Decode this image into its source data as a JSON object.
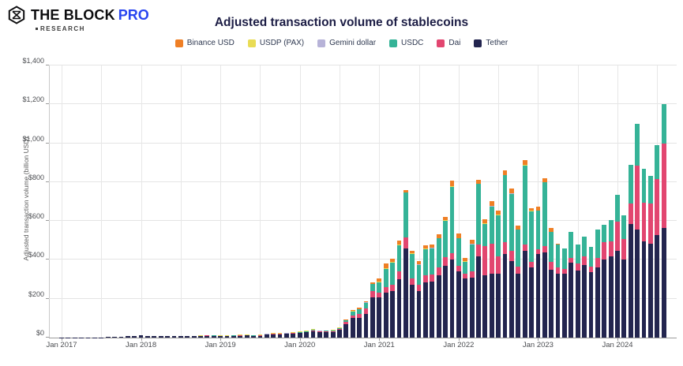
{
  "header": {
    "brand": "THE BLOCK",
    "brand_pro": "PRO",
    "brand_sub": "RESEARCH",
    "pro_color": "#2945f0"
  },
  "legend": [
    {
      "label": "Binance USD",
      "color": "#ef7f25"
    },
    {
      "label": "USDP (PAX)",
      "color": "#e9dc55"
    },
    {
      "label": "Gemini dollar",
      "color": "#b7b3d8"
    },
    {
      "label": "USDC",
      "color": "#35b397"
    },
    {
      "label": "Dai",
      "color": "#e24670"
    },
    {
      "label": "Tether",
      "color": "#23254f"
    }
  ],
  "chart_data": {
    "type": "bar",
    "subtype": "stacked-monthly",
    "title": "Adjusted transaction volume of stablecoins",
    "ylabel": "Adjusted transaction volume (billion USD)",
    "unit": "billion USD",
    "ylim": [
      0,
      1400
    ],
    "y_ticks": [
      "$0",
      "$200",
      "$400",
      "$600",
      "$800",
      "$1,000",
      "$1,200",
      "$1,400"
    ],
    "x_tick_labels": [
      "Jan 2017",
      "Jan 2018",
      "Jan 2019",
      "Jan 2020",
      "Jan 2021",
      "Jan 2022",
      "Jan 2023",
      "Jan 2024"
    ],
    "start_month": "Jan 2017",
    "end_month": "Aug 2024",
    "grid": "horizontal every $200, vertical every 6 months",
    "legend_position": "top-center",
    "series": [
      {
        "name": "Tether",
        "color": "#23254f",
        "values": [
          1,
          1,
          1,
          1,
          2,
          2,
          2,
          3,
          4,
          5,
          7,
          10,
          11,
          7,
          8,
          7,
          8,
          7,
          8,
          9,
          9,
          8,
          10,
          9,
          7,
          8,
          9,
          10,
          11,
          9,
          10,
          15,
          17,
          17,
          19,
          21,
          24,
          27,
          33,
          28,
          29,
          30,
          40,
          70,
          100,
          100,
          120,
          205,
          205,
          233,
          240,
          300,
          460,
          270,
          240,
          285,
          290,
          320,
          370,
          400,
          340,
          305,
          310,
          420,
          320,
          330,
          330,
          430,
          395,
          330,
          445,
          360,
          430,
          440,
          350,
          330,
          330,
          385,
          345,
          375,
          335,
          360,
          400,
          420,
          447,
          402,
          583,
          555,
          495,
          483,
          527,
          563
        ]
      },
      {
        "name": "Dai",
        "color": "#e24670",
        "values": [
          0,
          0,
          0,
          0,
          0,
          0,
          0,
          0,
          0,
          0,
          0,
          0,
          0,
          0,
          0,
          0,
          0,
          0,
          0,
          0,
          1,
          1,
          1,
          1,
          1,
          1,
          1,
          1,
          1,
          1,
          1,
          2,
          2,
          2,
          2,
          2,
          2,
          3,
          4,
          3,
          3,
          4,
          5,
          10,
          15,
          20,
          30,
          35,
          25,
          28,
          30,
          40,
          55,
          35,
          30,
          35,
          35,
          40,
          45,
          35,
          30,
          25,
          30,
          60,
          150,
          155,
          90,
          60,
          50,
          35,
          35,
          30,
          25,
          30,
          40,
          30,
          25,
          25,
          35,
          45,
          30,
          50,
          90,
          75,
          148,
          105,
          105,
          330,
          200,
          205,
          290,
          434
        ]
      },
      {
        "name": "USDC",
        "color": "#35b397",
        "values": [
          0,
          0,
          0,
          0,
          0,
          0,
          0,
          0,
          0,
          0,
          0,
          0,
          0,
          0,
          0,
          0,
          0,
          0,
          0,
          0,
          0,
          0,
          1,
          1,
          0,
          0,
          1,
          1,
          1,
          1,
          1,
          1,
          1,
          1,
          1,
          2,
          2,
          2,
          3,
          3,
          3,
          3,
          4,
          8,
          20,
          25,
          30,
          35,
          55,
          93,
          115,
          135,
          230,
          125,
          105,
          135,
          135,
          150,
          185,
          340,
          140,
          60,
          140,
          310,
          115,
          190,
          210,
          345,
          295,
          190,
          405,
          260,
          200,
          330,
          155,
          120,
          105,
          135,
          100,
          100,
          100,
          145,
          90,
          110,
          140,
          123,
          202,
          215,
          175,
          142,
          173,
          203
        ]
      },
      {
        "name": "Gemini dollar",
        "color": "#b7b3d8",
        "values": [
          0,
          0,
          0,
          0,
          0,
          0,
          0,
          0,
          0,
          0,
          0,
          0,
          0,
          0,
          0,
          0,
          0,
          0,
          0,
          0,
          0,
          1,
          1,
          1,
          1,
          1,
          1,
          1,
          1,
          1,
          1,
          1,
          1,
          1,
          1,
          1,
          1,
          1,
          1,
          1,
          1,
          1,
          1,
          1,
          1,
          1,
          1,
          1,
          1,
          1,
          1,
          1,
          1,
          1,
          1,
          1,
          1,
          1,
          1,
          1,
          1,
          1,
          1,
          1,
          1,
          1,
          1,
          1,
          1,
          1,
          1,
          1,
          0,
          0,
          0,
          0,
          0,
          0,
          0,
          0,
          0,
          0,
          0,
          0,
          0,
          0,
          0,
          0,
          0,
          0,
          0,
          0
        ]
      },
      {
        "name": "USDP (PAX)",
        "color": "#e9dc55",
        "values": [
          0,
          0,
          0,
          0,
          0,
          0,
          0,
          0,
          0,
          0,
          0,
          0,
          0,
          0,
          0,
          0,
          0,
          0,
          0,
          0,
          0,
          1,
          1,
          1,
          2,
          2,
          2,
          2,
          2,
          2,
          2,
          2,
          2,
          2,
          2,
          2,
          2,
          2,
          2,
          2,
          2,
          2,
          2,
          2,
          2,
          2,
          2,
          2,
          2,
          2,
          2,
          2,
          2,
          2,
          2,
          2,
          2,
          2,
          2,
          2,
          1,
          1,
          1,
          1,
          1,
          1,
          1,
          1,
          1,
          1,
          1,
          1,
          0,
          0,
          0,
          0,
          0,
          0,
          0,
          0,
          0,
          0,
          0,
          0,
          0,
          0,
          0,
          0,
          0,
          0,
          0,
          0
        ]
      },
      {
        "name": "Binance USD",
        "color": "#ef7f25",
        "values": [
          0,
          0,
          0,
          0,
          0,
          0,
          0,
          0,
          0,
          0,
          0,
          0,
          0,
          0,
          0,
          0,
          0,
          0,
          0,
          0,
          0,
          0,
          0,
          0,
          0,
          0,
          0,
          0,
          0,
          0,
          0,
          0,
          0,
          0,
          0,
          0,
          0,
          0,
          0,
          0,
          0,
          0,
          1,
          2,
          5,
          5,
          5,
          5,
          15,
          26,
          20,
          20,
          10,
          15,
          15,
          15,
          15,
          20,
          20,
          30,
          25,
          20,
          20,
          20,
          20,
          25,
          20,
          25,
          25,
          20,
          25,
          15,
          20,
          20,
          20,
          5,
          0,
          0,
          0,
          0,
          0,
          0,
          0,
          0,
          0,
          0,
          0,
          0,
          0,
          0,
          0,
          0
        ]
      }
    ]
  }
}
